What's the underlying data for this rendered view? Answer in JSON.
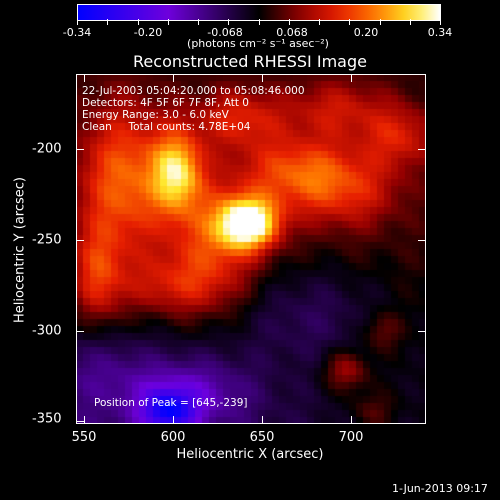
{
  "colorbar": {
    "tick_labels": [
      "-0.34",
      "-0.20",
      "-0.068",
      "0.068",
      "0.20",
      "0.34"
    ],
    "units": "(photons cm⁻² s⁻¹ asec⁻²)"
  },
  "title": "Reconstructed RHESSI Image",
  "annotations": {
    "time_range": "22-Jul-2003 05:04:20.000 to 05:08:46.000",
    "detectors": "Detectors: 4F 5F 6F 7F 8F, Att 0",
    "energy": "Energy Range: 3.0 - 6.0 keV",
    "clean": "Clean     Total counts: 4.78E+04",
    "peak": "Position of Peak = [645,-239]"
  },
  "x_axis": {
    "title": "Heliocentric X (arcsec)",
    "ticks": [
      "550",
      "600",
      "650",
      "700"
    ]
  },
  "y_axis": {
    "title": "Heliocentric Y (arcsec)",
    "ticks": [
      "-200",
      "-250",
      "-300",
      "-350"
    ]
  },
  "datestamp": "1-Jun-2013 09:17",
  "chart_data": {
    "type": "heatmap",
    "title": "Reconstructed RHESSI Image",
    "xlabel": "Heliocentric X (arcsec)",
    "ylabel": "Heliocentric Y (arcsec)",
    "xlim": [
      548,
      745
    ],
    "ylim": [
      -352,
      -155
    ],
    "colorbar_range": [
      -0.34,
      0.34
    ],
    "peak": {
      "x": 645,
      "y": -239
    },
    "sources": [
      {
        "x": 645,
        "y": -239,
        "amp": 0.34,
        "sx": 12,
        "sy": 10
      },
      {
        "x": 605,
        "y": -210,
        "amp": 0.24,
        "sx": 10,
        "sy": 16
      },
      {
        "x": 575,
        "y": -215,
        "amp": 0.18,
        "sx": 18,
        "sy": 30
      },
      {
        "x": 625,
        "y": -250,
        "amp": 0.14,
        "sx": 18,
        "sy": 25
      },
      {
        "x": 670,
        "y": -210,
        "amp": 0.14,
        "sx": 22,
        "sy": 14
      },
      {
        "x": 700,
        "y": -220,
        "amp": 0.12,
        "sx": 22,
        "sy": 16
      },
      {
        "x": 730,
        "y": -190,
        "amp": 0.11,
        "sx": 14,
        "sy": 12
      },
      {
        "x": 695,
        "y": -175,
        "amp": 0.1,
        "sx": 20,
        "sy": 12
      },
      {
        "x": 600,
        "y": -275,
        "amp": 0.1,
        "sx": 22,
        "sy": 12
      },
      {
        "x": 560,
        "y": -270,
        "amp": 0.13,
        "sx": 10,
        "sy": 20
      },
      {
        "x": 700,
        "y": -322,
        "amp": 0.11,
        "sx": 9,
        "sy": 8
      },
      {
        "x": 720,
        "y": -300,
        "amp": 0.07,
        "sx": 8,
        "sy": 8
      },
      {
        "x": 715,
        "y": -345,
        "amp": 0.06,
        "sx": 10,
        "sy": 8
      },
      {
        "x": 640,
        "y": -180,
        "amp": 0.12,
        "sx": 18,
        "sy": 12
      },
      {
        "x": 610,
        "y": -335,
        "amp": -0.12,
        "sx": 25,
        "sy": 14
      },
      {
        "x": 600,
        "y": -345,
        "amp": -0.2,
        "sx": 10,
        "sy": 8
      },
      {
        "x": 680,
        "y": -290,
        "amp": -0.06,
        "sx": 30,
        "sy": 20
      },
      {
        "x": 560,
        "y": -320,
        "amp": -0.05,
        "sx": 20,
        "sy": 15
      }
    ]
  }
}
